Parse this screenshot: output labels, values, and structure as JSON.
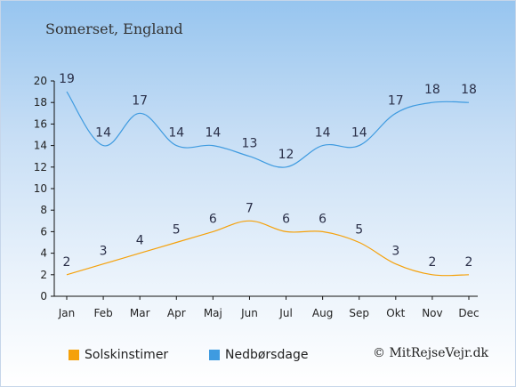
{
  "chart_data": {
    "type": "line",
    "title": "Somerset, England",
    "categories": [
      "Jan",
      "Feb",
      "Mar",
      "Apr",
      "Maj",
      "Jun",
      "Jul",
      "Aug",
      "Sep",
      "Okt",
      "Nov",
      "Dec"
    ],
    "series": [
      {
        "name": "Solskinstimer",
        "color": "#f5a10a",
        "values": [
          2,
          3,
          4,
          5,
          6,
          7,
          6,
          6,
          5,
          3,
          2,
          2
        ]
      },
      {
        "name": "Nedbørsdage",
        "color": "#3f9be0",
        "values": [
          19,
          14,
          17,
          14,
          14,
          13,
          12,
          14,
          14,
          17,
          18,
          18
        ]
      }
    ],
    "ylim": [
      0,
      20
    ],
    "yticks": [
      0,
      2,
      4,
      6,
      8,
      10,
      12,
      14,
      16,
      18,
      20
    ],
    "xlabel": "",
    "ylabel": "",
    "grid": false,
    "legend_position": "bottom"
  },
  "credit": "© MitRejseVejr.dk"
}
